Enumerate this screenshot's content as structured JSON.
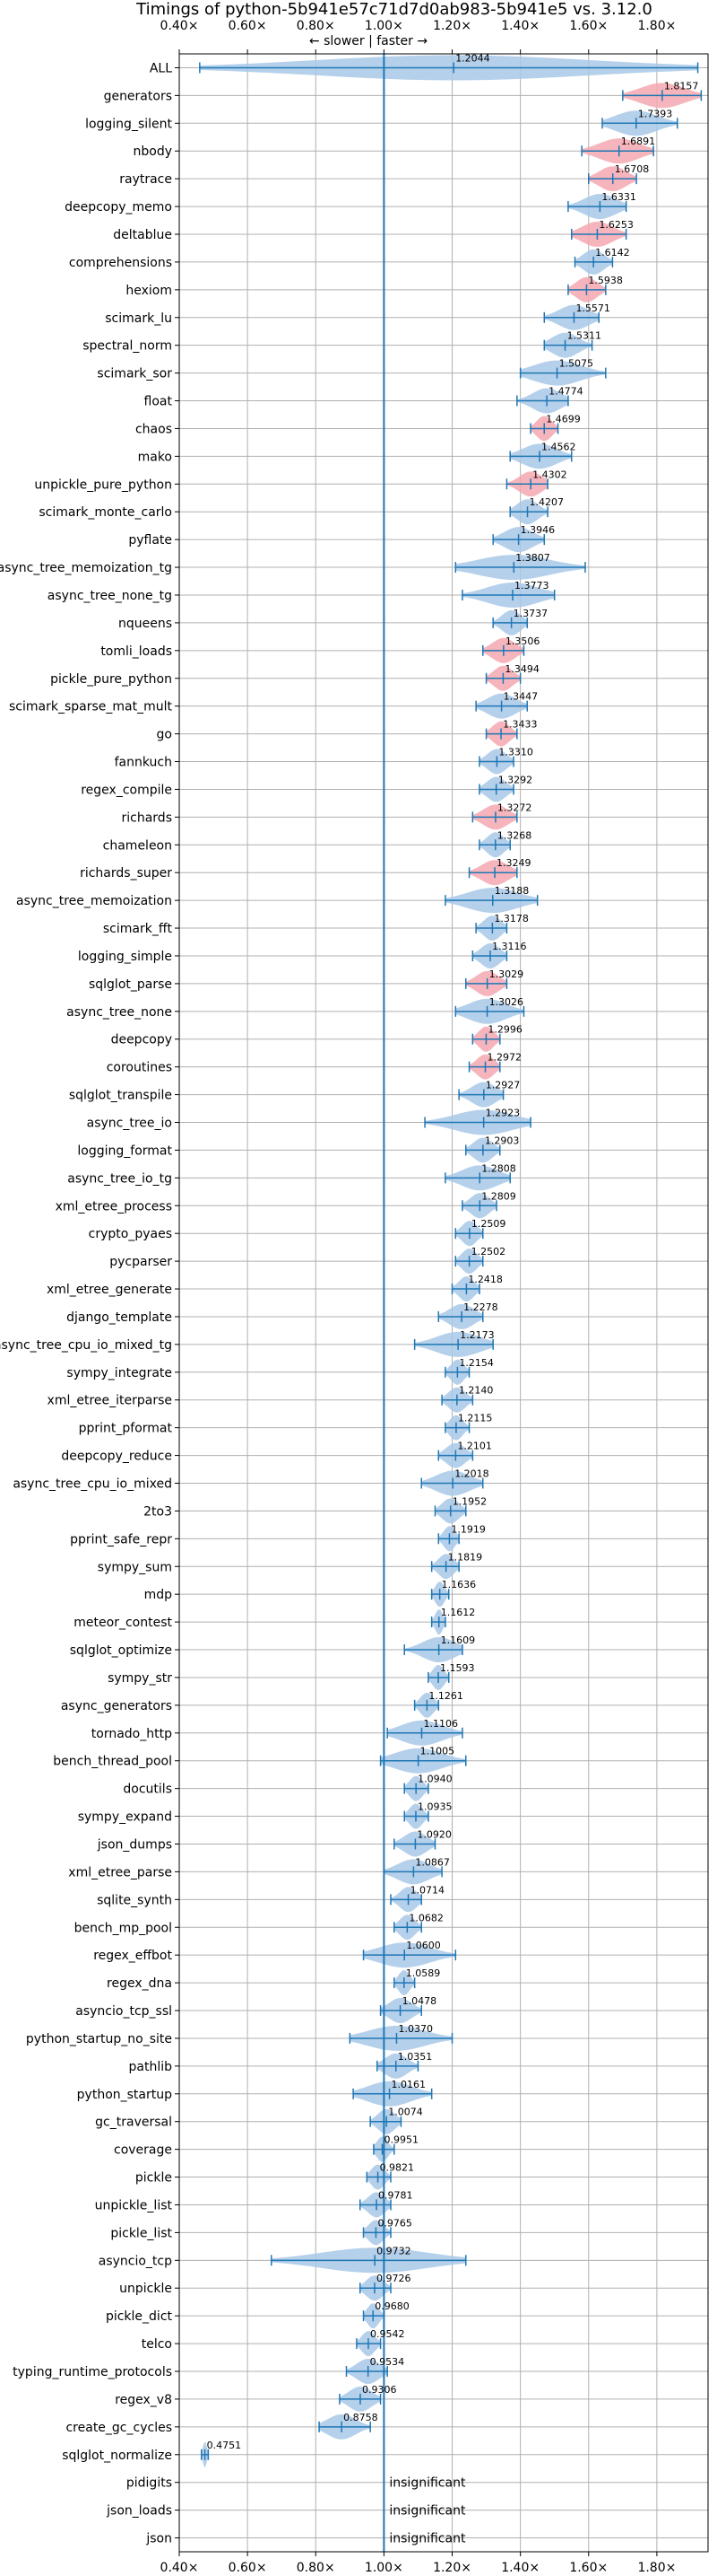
{
  "chart_data": {
    "type": "violin",
    "title": "Timings of python-5b941e57c71d7d0ab983-5b941e5 vs. 3.12.0",
    "annotation": "← slower | faster →",
    "xlim": [
      0.4,
      1.95
    ],
    "x_ticks": [
      "0.40×",
      "0.60×",
      "0.80×",
      "1.00×",
      "1.20×",
      "1.40×",
      "1.60×",
      "1.80×"
    ],
    "x_tick_values": [
      0.4,
      0.6,
      0.8,
      1.0,
      1.2,
      1.4,
      1.6,
      1.8
    ],
    "reference_line": 1.0,
    "grid": true,
    "insignificant_label": "insignificant",
    "benchmarks": [
      {
        "name": "ALL",
        "mean": 1.2044,
        "label": "1.2044",
        "lo": 0.46,
        "hi": 1.92
      },
      {
        "name": "generators",
        "mean": 1.8157,
        "label": "1.8157",
        "lo": 1.7,
        "hi": 1.93,
        "red": true
      },
      {
        "name": "logging_silent",
        "mean": 1.7393,
        "label": "1.7393",
        "lo": 1.64,
        "hi": 1.86
      },
      {
        "name": "nbody",
        "mean": 1.6891,
        "label": "1.6891",
        "lo": 1.58,
        "hi": 1.79,
        "red": true
      },
      {
        "name": "raytrace",
        "mean": 1.6708,
        "label": "1.6708",
        "lo": 1.6,
        "hi": 1.74,
        "red": true
      },
      {
        "name": "deepcopy_memo",
        "mean": 1.6331,
        "label": "1.6331",
        "lo": 1.54,
        "hi": 1.71
      },
      {
        "name": "deltablue",
        "mean": 1.6253,
        "label": "1.6253",
        "lo": 1.55,
        "hi": 1.71,
        "red": true
      },
      {
        "name": "comprehensions",
        "mean": 1.6142,
        "label": "1.6142",
        "lo": 1.56,
        "hi": 1.67
      },
      {
        "name": "hexiom",
        "mean": 1.5938,
        "label": "1.5938",
        "lo": 1.54,
        "hi": 1.65,
        "red": true
      },
      {
        "name": "scimark_lu",
        "mean": 1.5571,
        "label": "1.5571",
        "lo": 1.47,
        "hi": 1.63
      },
      {
        "name": "spectral_norm",
        "mean": 1.5311,
        "label": "1.5311",
        "lo": 1.47,
        "hi": 1.61
      },
      {
        "name": "scimark_sor",
        "mean": 1.5075,
        "label": "1.5075",
        "lo": 1.4,
        "hi": 1.65
      },
      {
        "name": "float",
        "mean": 1.4774,
        "label": "1.4774",
        "lo": 1.39,
        "hi": 1.54
      },
      {
        "name": "chaos",
        "mean": 1.4699,
        "label": "1.4699",
        "lo": 1.43,
        "hi": 1.51,
        "red": true
      },
      {
        "name": "mako",
        "mean": 1.4562,
        "label": "1.4562",
        "lo": 1.37,
        "hi": 1.55
      },
      {
        "name": "unpickle_pure_python",
        "mean": 1.4302,
        "label": "1.4302",
        "lo": 1.36,
        "hi": 1.48,
        "red": true
      },
      {
        "name": "scimark_monte_carlo",
        "mean": 1.4207,
        "label": "1.4207",
        "lo": 1.37,
        "hi": 1.48
      },
      {
        "name": "pyflate",
        "mean": 1.3946,
        "label": "1.3946",
        "lo": 1.32,
        "hi": 1.47
      },
      {
        "name": "async_tree_memoization_tg",
        "mean": 1.3807,
        "label": "1.3807",
        "lo": 1.21,
        "hi": 1.59
      },
      {
        "name": "async_tree_none_tg",
        "mean": 1.3773,
        "label": "1.3773",
        "lo": 1.23,
        "hi": 1.5
      },
      {
        "name": "nqueens",
        "mean": 1.3737,
        "label": "1.3737",
        "lo": 1.32,
        "hi": 1.42
      },
      {
        "name": "tomli_loads",
        "mean": 1.3506,
        "label": "1.3506",
        "lo": 1.29,
        "hi": 1.41,
        "red": true
      },
      {
        "name": "pickle_pure_python",
        "mean": 1.3494,
        "label": "1.3494",
        "lo": 1.3,
        "hi": 1.4,
        "red": true
      },
      {
        "name": "scimark_sparse_mat_mult",
        "mean": 1.3447,
        "label": "1.3447",
        "lo": 1.27,
        "hi": 1.42
      },
      {
        "name": "go",
        "mean": 1.3433,
        "label": "1.3433",
        "lo": 1.3,
        "hi": 1.39,
        "red": true
      },
      {
        "name": "fannkuch",
        "mean": 1.331,
        "label": "1.3310",
        "lo": 1.28,
        "hi": 1.38
      },
      {
        "name": "regex_compile",
        "mean": 1.3292,
        "label": "1.3292",
        "lo": 1.28,
        "hi": 1.38
      },
      {
        "name": "richards",
        "mean": 1.3272,
        "label": "1.3272",
        "lo": 1.26,
        "hi": 1.39,
        "red": true
      },
      {
        "name": "chameleon",
        "mean": 1.3268,
        "label": "1.3268",
        "lo": 1.28,
        "hi": 1.37
      },
      {
        "name": "richards_super",
        "mean": 1.3249,
        "label": "1.3249",
        "lo": 1.25,
        "hi": 1.39,
        "red": true
      },
      {
        "name": "async_tree_memoization",
        "mean": 1.3188,
        "label": "1.3188",
        "lo": 1.18,
        "hi": 1.45
      },
      {
        "name": "scimark_fft",
        "mean": 1.3178,
        "label": "1.3178",
        "lo": 1.27,
        "hi": 1.36
      },
      {
        "name": "logging_simple",
        "mean": 1.3116,
        "label": "1.3116",
        "lo": 1.26,
        "hi": 1.36
      },
      {
        "name": "sqlglot_parse",
        "mean": 1.3029,
        "label": "1.3029",
        "lo": 1.24,
        "hi": 1.36,
        "red": true
      },
      {
        "name": "async_tree_none",
        "mean": 1.3026,
        "label": "1.3026",
        "lo": 1.21,
        "hi": 1.41
      },
      {
        "name": "deepcopy",
        "mean": 1.2996,
        "label": "1.2996",
        "lo": 1.26,
        "hi": 1.34,
        "red": true
      },
      {
        "name": "coroutines",
        "mean": 1.2972,
        "label": "1.2972",
        "lo": 1.25,
        "hi": 1.34,
        "red": true
      },
      {
        "name": "sqlglot_transpile",
        "mean": 1.2927,
        "label": "1.2927",
        "lo": 1.22,
        "hi": 1.35
      },
      {
        "name": "async_tree_io",
        "mean": 1.2923,
        "label": "1.2923",
        "lo": 1.12,
        "hi": 1.43
      },
      {
        "name": "logging_format",
        "mean": 1.2903,
        "label": "1.2903",
        "lo": 1.24,
        "hi": 1.34
      },
      {
        "name": "async_tree_io_tg",
        "mean": 1.2808,
        "label": "1.2808",
        "lo": 1.18,
        "hi": 1.37
      },
      {
        "name": "xml_etree_process",
        "mean": 1.2809,
        "label": "1.2809",
        "lo": 1.23,
        "hi": 1.33
      },
      {
        "name": "crypto_pyaes",
        "mean": 1.2509,
        "label": "1.2509",
        "lo": 1.21,
        "hi": 1.29
      },
      {
        "name": "pycparser",
        "mean": 1.2502,
        "label": "1.2502",
        "lo": 1.21,
        "hi": 1.29
      },
      {
        "name": "xml_etree_generate",
        "mean": 1.2418,
        "label": "1.2418",
        "lo": 1.2,
        "hi": 1.28
      },
      {
        "name": "django_template",
        "mean": 1.2278,
        "label": "1.2278",
        "lo": 1.16,
        "hi": 1.29
      },
      {
        "name": "async_tree_cpu_io_mixed_tg",
        "mean": 1.2173,
        "label": "1.2173",
        "lo": 1.09,
        "hi": 1.32
      },
      {
        "name": "sympy_integrate",
        "mean": 1.2154,
        "label": "1.2154",
        "lo": 1.18,
        "hi": 1.25
      },
      {
        "name": "xml_etree_iterparse",
        "mean": 1.214,
        "label": "1.2140",
        "lo": 1.17,
        "hi": 1.26
      },
      {
        "name": "pprint_pformat",
        "mean": 1.2115,
        "label": "1.2115",
        "lo": 1.18,
        "hi": 1.25
      },
      {
        "name": "deepcopy_reduce",
        "mean": 1.2101,
        "label": "1.2101",
        "lo": 1.16,
        "hi": 1.26
      },
      {
        "name": "async_tree_cpu_io_mixed",
        "mean": 1.2018,
        "label": "1.2018",
        "lo": 1.11,
        "hi": 1.29
      },
      {
        "name": "2to3",
        "mean": 1.1952,
        "label": "1.1952",
        "lo": 1.15,
        "hi": 1.24
      },
      {
        "name": "pprint_safe_repr",
        "mean": 1.1919,
        "label": "1.1919",
        "lo": 1.16,
        "hi": 1.22
      },
      {
        "name": "sympy_sum",
        "mean": 1.1819,
        "label": "1.1819",
        "lo": 1.14,
        "hi": 1.22
      },
      {
        "name": "mdp",
        "mean": 1.1636,
        "label": "1.1636",
        "lo": 1.14,
        "hi": 1.19
      },
      {
        "name": "meteor_contest",
        "mean": 1.1612,
        "label": "1.1612",
        "lo": 1.14,
        "hi": 1.18
      },
      {
        "name": "sqlglot_optimize",
        "mean": 1.1609,
        "label": "1.1609",
        "lo": 1.06,
        "hi": 1.23
      },
      {
        "name": "sympy_str",
        "mean": 1.1593,
        "label": "1.1593",
        "lo": 1.13,
        "hi": 1.19
      },
      {
        "name": "async_generators",
        "mean": 1.1261,
        "label": "1.1261",
        "lo": 1.09,
        "hi": 1.16
      },
      {
        "name": "tornado_http",
        "mean": 1.1106,
        "label": "1.1106",
        "lo": 1.01,
        "hi": 1.23
      },
      {
        "name": "bench_thread_pool",
        "mean": 1.1005,
        "label": "1.1005",
        "lo": 0.99,
        "hi": 1.24
      },
      {
        "name": "docutils",
        "mean": 1.094,
        "label": "1.0940",
        "lo": 1.06,
        "hi": 1.13
      },
      {
        "name": "sympy_expand",
        "mean": 1.0935,
        "label": "1.0935",
        "lo": 1.06,
        "hi": 1.13
      },
      {
        "name": "json_dumps",
        "mean": 1.092,
        "label": "1.0920",
        "lo": 1.03,
        "hi": 1.15
      },
      {
        "name": "xml_etree_parse",
        "mean": 1.0867,
        "label": "1.0867",
        "lo": 1.0,
        "hi": 1.17
      },
      {
        "name": "sqlite_synth",
        "mean": 1.0714,
        "label": "1.0714",
        "lo": 1.02,
        "hi": 1.11
      },
      {
        "name": "bench_mp_pool",
        "mean": 1.0682,
        "label": "1.0682",
        "lo": 1.03,
        "hi": 1.11
      },
      {
        "name": "regex_effbot",
        "mean": 1.06,
        "label": "1.0600",
        "lo": 0.94,
        "hi": 1.21
      },
      {
        "name": "regex_dna",
        "mean": 1.0589,
        "label": "1.0589",
        "lo": 1.03,
        "hi": 1.09
      },
      {
        "name": "asyncio_tcp_ssl",
        "mean": 1.0478,
        "label": "1.0478",
        "lo": 0.99,
        "hi": 1.11
      },
      {
        "name": "python_startup_no_site",
        "mean": 1.037,
        "label": "1.0370",
        "lo": 0.9,
        "hi": 1.2
      },
      {
        "name": "pathlib",
        "mean": 1.0351,
        "label": "1.0351",
        "lo": 0.98,
        "hi": 1.1
      },
      {
        "name": "python_startup",
        "mean": 1.0161,
        "label": "1.0161",
        "lo": 0.91,
        "hi": 1.14
      },
      {
        "name": "gc_traversal",
        "mean": 1.0074,
        "label": "1.0074",
        "lo": 0.96,
        "hi": 1.05
      },
      {
        "name": "coverage",
        "mean": 0.9951,
        "label": "0.9951",
        "lo": 0.97,
        "hi": 1.03
      },
      {
        "name": "pickle",
        "mean": 0.9821,
        "label": "0.9821",
        "lo": 0.95,
        "hi": 1.02
      },
      {
        "name": "unpickle_list",
        "mean": 0.9781,
        "label": "0.9781",
        "lo": 0.93,
        "hi": 1.02
      },
      {
        "name": "pickle_list",
        "mean": 0.9765,
        "label": "0.9765",
        "lo": 0.94,
        "hi": 1.02
      },
      {
        "name": "asyncio_tcp",
        "mean": 0.9732,
        "label": "0.9732",
        "lo": 0.67,
        "hi": 1.24
      },
      {
        "name": "unpickle",
        "mean": 0.9726,
        "label": "0.9726",
        "lo": 0.93,
        "hi": 1.02
      },
      {
        "name": "pickle_dict",
        "mean": 0.968,
        "label": "0.9680",
        "lo": 0.94,
        "hi": 1.0
      },
      {
        "name": "telco",
        "mean": 0.9542,
        "label": "0.9542",
        "lo": 0.92,
        "hi": 0.99
      },
      {
        "name": "typing_runtime_protocols",
        "mean": 0.9534,
        "label": "0.9534",
        "lo": 0.89,
        "hi": 1.01
      },
      {
        "name": "regex_v8",
        "mean": 0.9306,
        "label": "0.9306",
        "lo": 0.87,
        "hi": 0.99
      },
      {
        "name": "create_gc_cycles",
        "mean": 0.8758,
        "label": "0.8758",
        "lo": 0.81,
        "hi": 0.96
      },
      {
        "name": "sqlglot_normalize",
        "mean": 0.4751,
        "label": "0.4751",
        "lo": 0.465,
        "hi": 0.485
      },
      {
        "name": "pidigits",
        "insignificant": true
      },
      {
        "name": "json_loads",
        "insignificant": true
      },
      {
        "name": "json",
        "insignificant": true
      }
    ],
    "colors": {
      "violin_blue": "#a8c8e8",
      "violin_red": "#f4a8b0",
      "line_blue": "#1f77b4",
      "grid": "#b0b0b0"
    }
  }
}
